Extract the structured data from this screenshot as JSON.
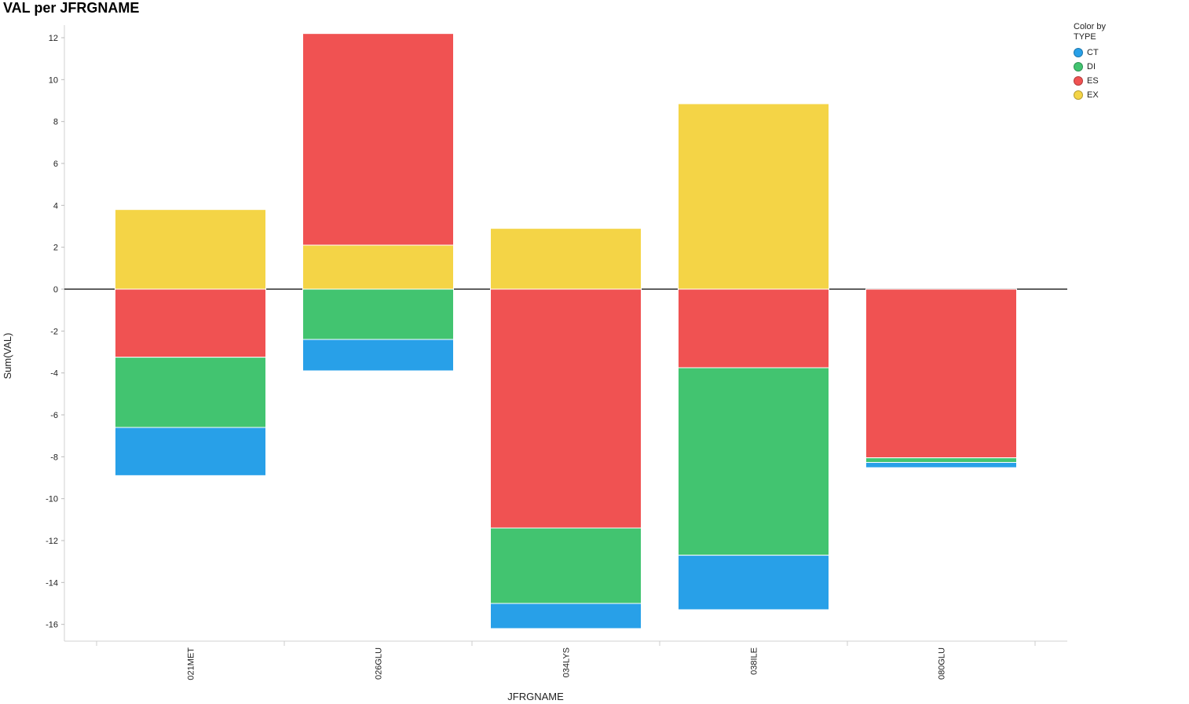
{
  "chart_data": {
    "type": "bar",
    "stacked": true,
    "title": "VAL per JFRGNAME",
    "xlabel": "JFRGNAME",
    "ylabel": "Sum(VAL)",
    "categories": [
      "021MET",
      "026GLU",
      "034LYS",
      "038ILE",
      "080GLU"
    ],
    "ylim": [
      -16.8,
      12.6
    ],
    "yticks": [
      12,
      10,
      8,
      6,
      4,
      2,
      0,
      -2,
      -4,
      -6,
      -8,
      -10,
      -12,
      -14,
      -16
    ],
    "legend_title": [
      "Color by",
      "TYPE"
    ],
    "legend_placement": "top-right",
    "grid": false,
    "series": [
      {
        "name": "CT",
        "color": "#28a0e8",
        "values": [
          -2.3,
          -1.5,
          -1.2,
          -2.6,
          -0.25
        ]
      },
      {
        "name": "DI",
        "color": "#42c470",
        "values": [
          -3.35,
          -2.4,
          -3.6,
          -8.95,
          -0.22
        ]
      },
      {
        "name": "ES",
        "color": "#f05252",
        "values": [
          -3.25,
          10.1,
          -11.4,
          -3.75,
          -8.05
        ]
      },
      {
        "name": "EX",
        "color": "#f4d446",
        "values": [
          3.8,
          2.1,
          2.9,
          8.85,
          0
        ]
      }
    ],
    "stack_order_positive": [
      "EX",
      "ES"
    ],
    "stack_order_negative": [
      "ES",
      "DI",
      "CT"
    ]
  }
}
